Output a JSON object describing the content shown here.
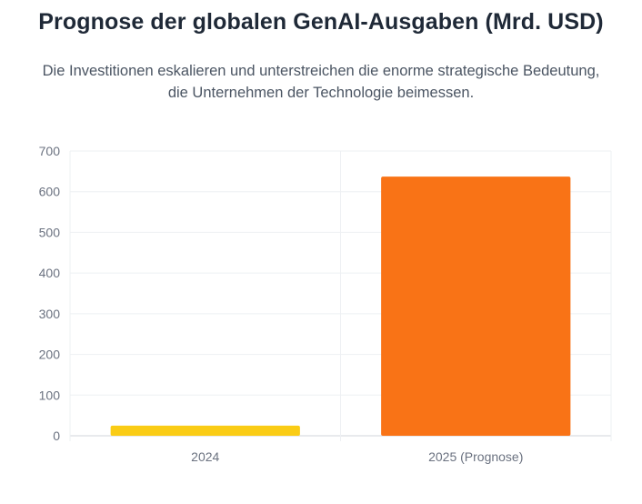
{
  "header": {
    "title": "Prognose der globalen GenAI-Ausgaben (Mrd. USD)",
    "subtitle": "Die Investitionen eskalieren und unterstreichen die enorme strategische Bedeutung, die Unternehmen der Technologie beimessen."
  },
  "chart_data": {
    "type": "bar",
    "title": "Prognose der globalen GenAI-Ausgaben (Mrd. USD)",
    "subtitle": "Die Investitionen eskalieren und unterstreichen die enorme strategische Bedeutung, die Unternehmen der Technologie beimessen.",
    "categories": [
      "2024",
      "2025 (Prognose)"
    ],
    "values": [
      25,
      637
    ],
    "colors": [
      "#facc15",
      "#f97316"
    ],
    "ylim": [
      0,
      700
    ],
    "yticks": [
      0,
      100,
      200,
      300,
      400,
      500,
      600,
      700
    ],
    "grid": true,
    "legend": "none"
  }
}
